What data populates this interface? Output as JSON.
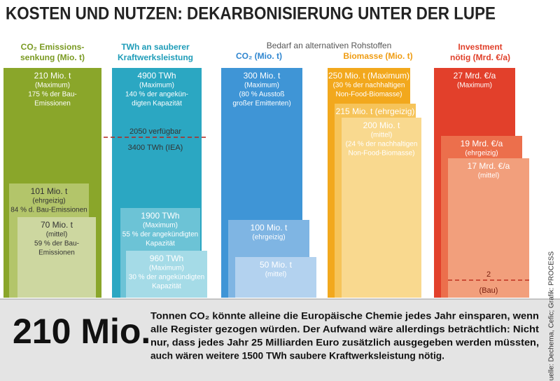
{
  "title": "KOSTEN UND NUTZEN: DEKARBONISIERUNG UNTER DER LUPE",
  "group_header": "Bedarf an alternativen Rohstoffen",
  "columns": [
    {
      "header": [
        "CO₂ Emissions-",
        "senkung (Mio. t)"
      ],
      "boxes": [
        {
          "lines": [
            "210 Mio. t",
            "(Maximum)",
            "175 % der Bau-",
            "Emissionen"
          ]
        },
        {
          "lines": [
            "101 Mio. t",
            "(ehrgeizig)",
            "84 % d. Bau-Emissionen"
          ]
        },
        {
          "lines": [
            "70 Mio. t",
            "(mittel)",
            "59 % der Bau-",
            "Emissionen"
          ]
        }
      ]
    },
    {
      "header": [
        "TWh an sauberer",
        "Kraftwerksleistung"
      ],
      "boxes": [
        {
          "lines": [
            "4900 TWh",
            "(Maximum)",
            "140 % der angekün-",
            "digten Kapazität"
          ]
        },
        {
          "lines": [
            "1900 TWh",
            "(Maximum)",
            "55 % der angekündigten",
            "Kapazität"
          ]
        },
        {
          "lines": [
            "960 TWh",
            "(Maximum)",
            "30 % der angekündigten",
            "Kapazität"
          ]
        }
      ],
      "marker": [
        "2050 verfügbar",
        "3400 TWh (IEA)"
      ]
    },
    {
      "header": [
        "CO₂ (Mio. t)"
      ],
      "boxes": [
        {
          "lines": [
            "300 Mio. t",
            "(Maximum)",
            "(80 % Ausstoß",
            "großer Emittenten)"
          ]
        },
        {
          "lines": [
            "100 Mio. t",
            "(ehrgeizig)"
          ]
        },
        {
          "lines": [
            "50 Mio. t",
            "(mittel)"
          ]
        }
      ]
    },
    {
      "header": [
        "Biomasse (Mio. t)"
      ],
      "boxes": [
        {
          "lines": [
            "250 Mio. t (Maximum)",
            "(30 % der nachhaltigen",
            "Non-Food-Biomasse)"
          ]
        },
        {
          "lines": [
            "215 Mio. t (ehrgeizig)"
          ]
        },
        {
          "lines": [
            "200 Mio. t",
            "(mittel)",
            "(24 % der nachhaltigen",
            "Non-Food-Biomasse)"
          ]
        }
      ]
    },
    {
      "header": [
        "Investment",
        "nötig (Mrd. €/a)"
      ],
      "boxes": [
        {
          "lines": [
            "27 Mrd. €/a",
            "(Maximum)"
          ]
        },
        {
          "lines": [
            "19 Mrd. €/a",
            "(ehrgeizig)"
          ]
        },
        {
          "lines": [
            "17 Mrd. €/a",
            "(mittel)"
          ]
        }
      ],
      "marker": [
        "2",
        "(Bau)"
      ]
    }
  ],
  "footer": {
    "big": "210 Mio.",
    "lines": [
      "Tonnen CO₂ könnte alleine die Europäische Chemie jedes Jahr einsparen, wenn",
      "alle Register gezogen würden. Der Aufwand wäre allerdings beträchtlich: Nicht",
      "nur, dass jedes Jahr 25 Milliarden Euro zusätzlich ausgegeben werden müssten,",
      "auch wären weitere 1500 TWh saubere Kraftwerksleistung nötig."
    ]
  },
  "source": "Quelle: Dechema, Cefic; Grafik: PROCESS"
}
